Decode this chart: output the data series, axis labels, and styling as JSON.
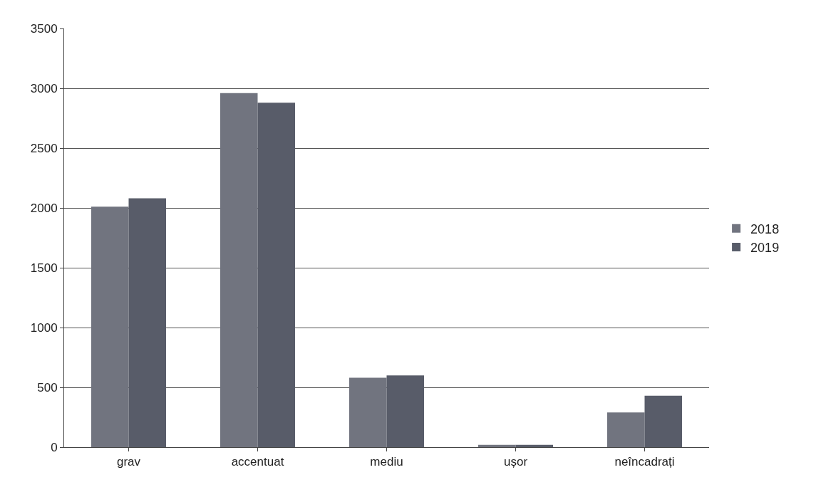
{
  "chart_data": {
    "type": "bar",
    "categories": [
      "grav",
      "accentuat",
      "mediu",
      "ușor",
      "neîncadrați"
    ],
    "series": [
      {
        "name": "2018",
        "color": "#71747f",
        "values": [
          2010,
          2960,
          580,
          20,
          290
        ]
      },
      {
        "name": "2019",
        "color": "#585c69",
        "values": [
          2080,
          2880,
          600,
          20,
          430
        ]
      }
    ],
    "ylim": [
      0,
      3500
    ],
    "yticks": [
      0,
      500,
      1000,
      1500,
      2000,
      2500,
      3000,
      3500
    ],
    "grid": "y",
    "legend": "right"
  }
}
